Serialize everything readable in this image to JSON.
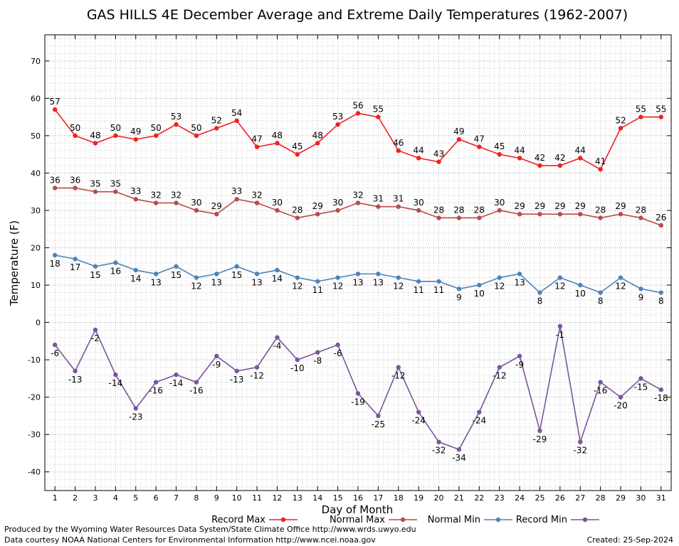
{
  "chart_data": {
    "type": "line",
    "title": "GAS HILLS 4E December Average and Extreme Daily Temperatures (1962-2007)",
    "xlabel": "Day of Month",
    "ylabel": "Temperature (F)",
    "x": [
      1,
      2,
      3,
      4,
      5,
      6,
      7,
      8,
      9,
      10,
      11,
      12,
      13,
      14,
      15,
      16,
      17,
      18,
      19,
      20,
      21,
      22,
      23,
      24,
      25,
      26,
      27,
      28,
      29,
      30,
      31
    ],
    "xlim": [
      0.5,
      31.5
    ],
    "ylim": [
      -45,
      77
    ],
    "yticks": [
      -40,
      -30,
      -20,
      -10,
      0,
      10,
      20,
      30,
      40,
      50,
      60,
      70
    ],
    "grid": true,
    "legend_position": "bottom",
    "series": [
      {
        "name": "Record Max",
        "color": "#ee2222",
        "label_pos": "above",
        "values": [
          57,
          50,
          48,
          50,
          49,
          50,
          53,
          50,
          52,
          54,
          47,
          48,
          45,
          48,
          53,
          56,
          55,
          46,
          44,
          43,
          49,
          47,
          45,
          44,
          42,
          42,
          44,
          41,
          52,
          55,
          55
        ]
      },
      {
        "name": "Normal Max",
        "color": "#b84c4c",
        "label_pos": "above",
        "values": [
          36,
          36,
          35,
          35,
          33,
          32,
          32,
          30,
          29,
          33,
          32,
          30,
          28,
          29,
          30,
          32,
          31,
          31,
          30,
          28,
          28,
          28,
          30,
          29,
          29,
          29,
          29,
          28,
          29,
          28,
          26
        ]
      },
      {
        "name": "Normal Min",
        "color": "#4f82b8",
        "label_pos": "below",
        "values": [
          18,
          17,
          15,
          16,
          14,
          13,
          15,
          12,
          13,
          15,
          13,
          14,
          12,
          11,
          12,
          13,
          13,
          12,
          11,
          11,
          9,
          10,
          12,
          13,
          8,
          12,
          10,
          8,
          12,
          9,
          8
        ]
      },
      {
        "name": "Record Min",
        "color": "#7a559c",
        "label_pos": "below",
        "values": [
          -6,
          -13,
          -2,
          -14,
          -23,
          -16,
          -14,
          -16,
          -9,
          -13,
          -12,
          -4,
          -10,
          -8,
          -6,
          -19,
          -25,
          -12,
          -24,
          -32,
          -34,
          -24,
          -12,
          -9,
          -29,
          -1,
          -32,
          -16,
          -20,
          -15,
          -18
        ]
      }
    ]
  },
  "footer": {
    "line1": "Produced by the Wyoming Water Resources Data System/State Climate Office http://www.wrds.uwyo.edu",
    "line2": "Data courtesy NOAA National Centers for Environmental Information http://www.ncei.noaa.gov",
    "created": "Created:  25-Sep-2024"
  }
}
